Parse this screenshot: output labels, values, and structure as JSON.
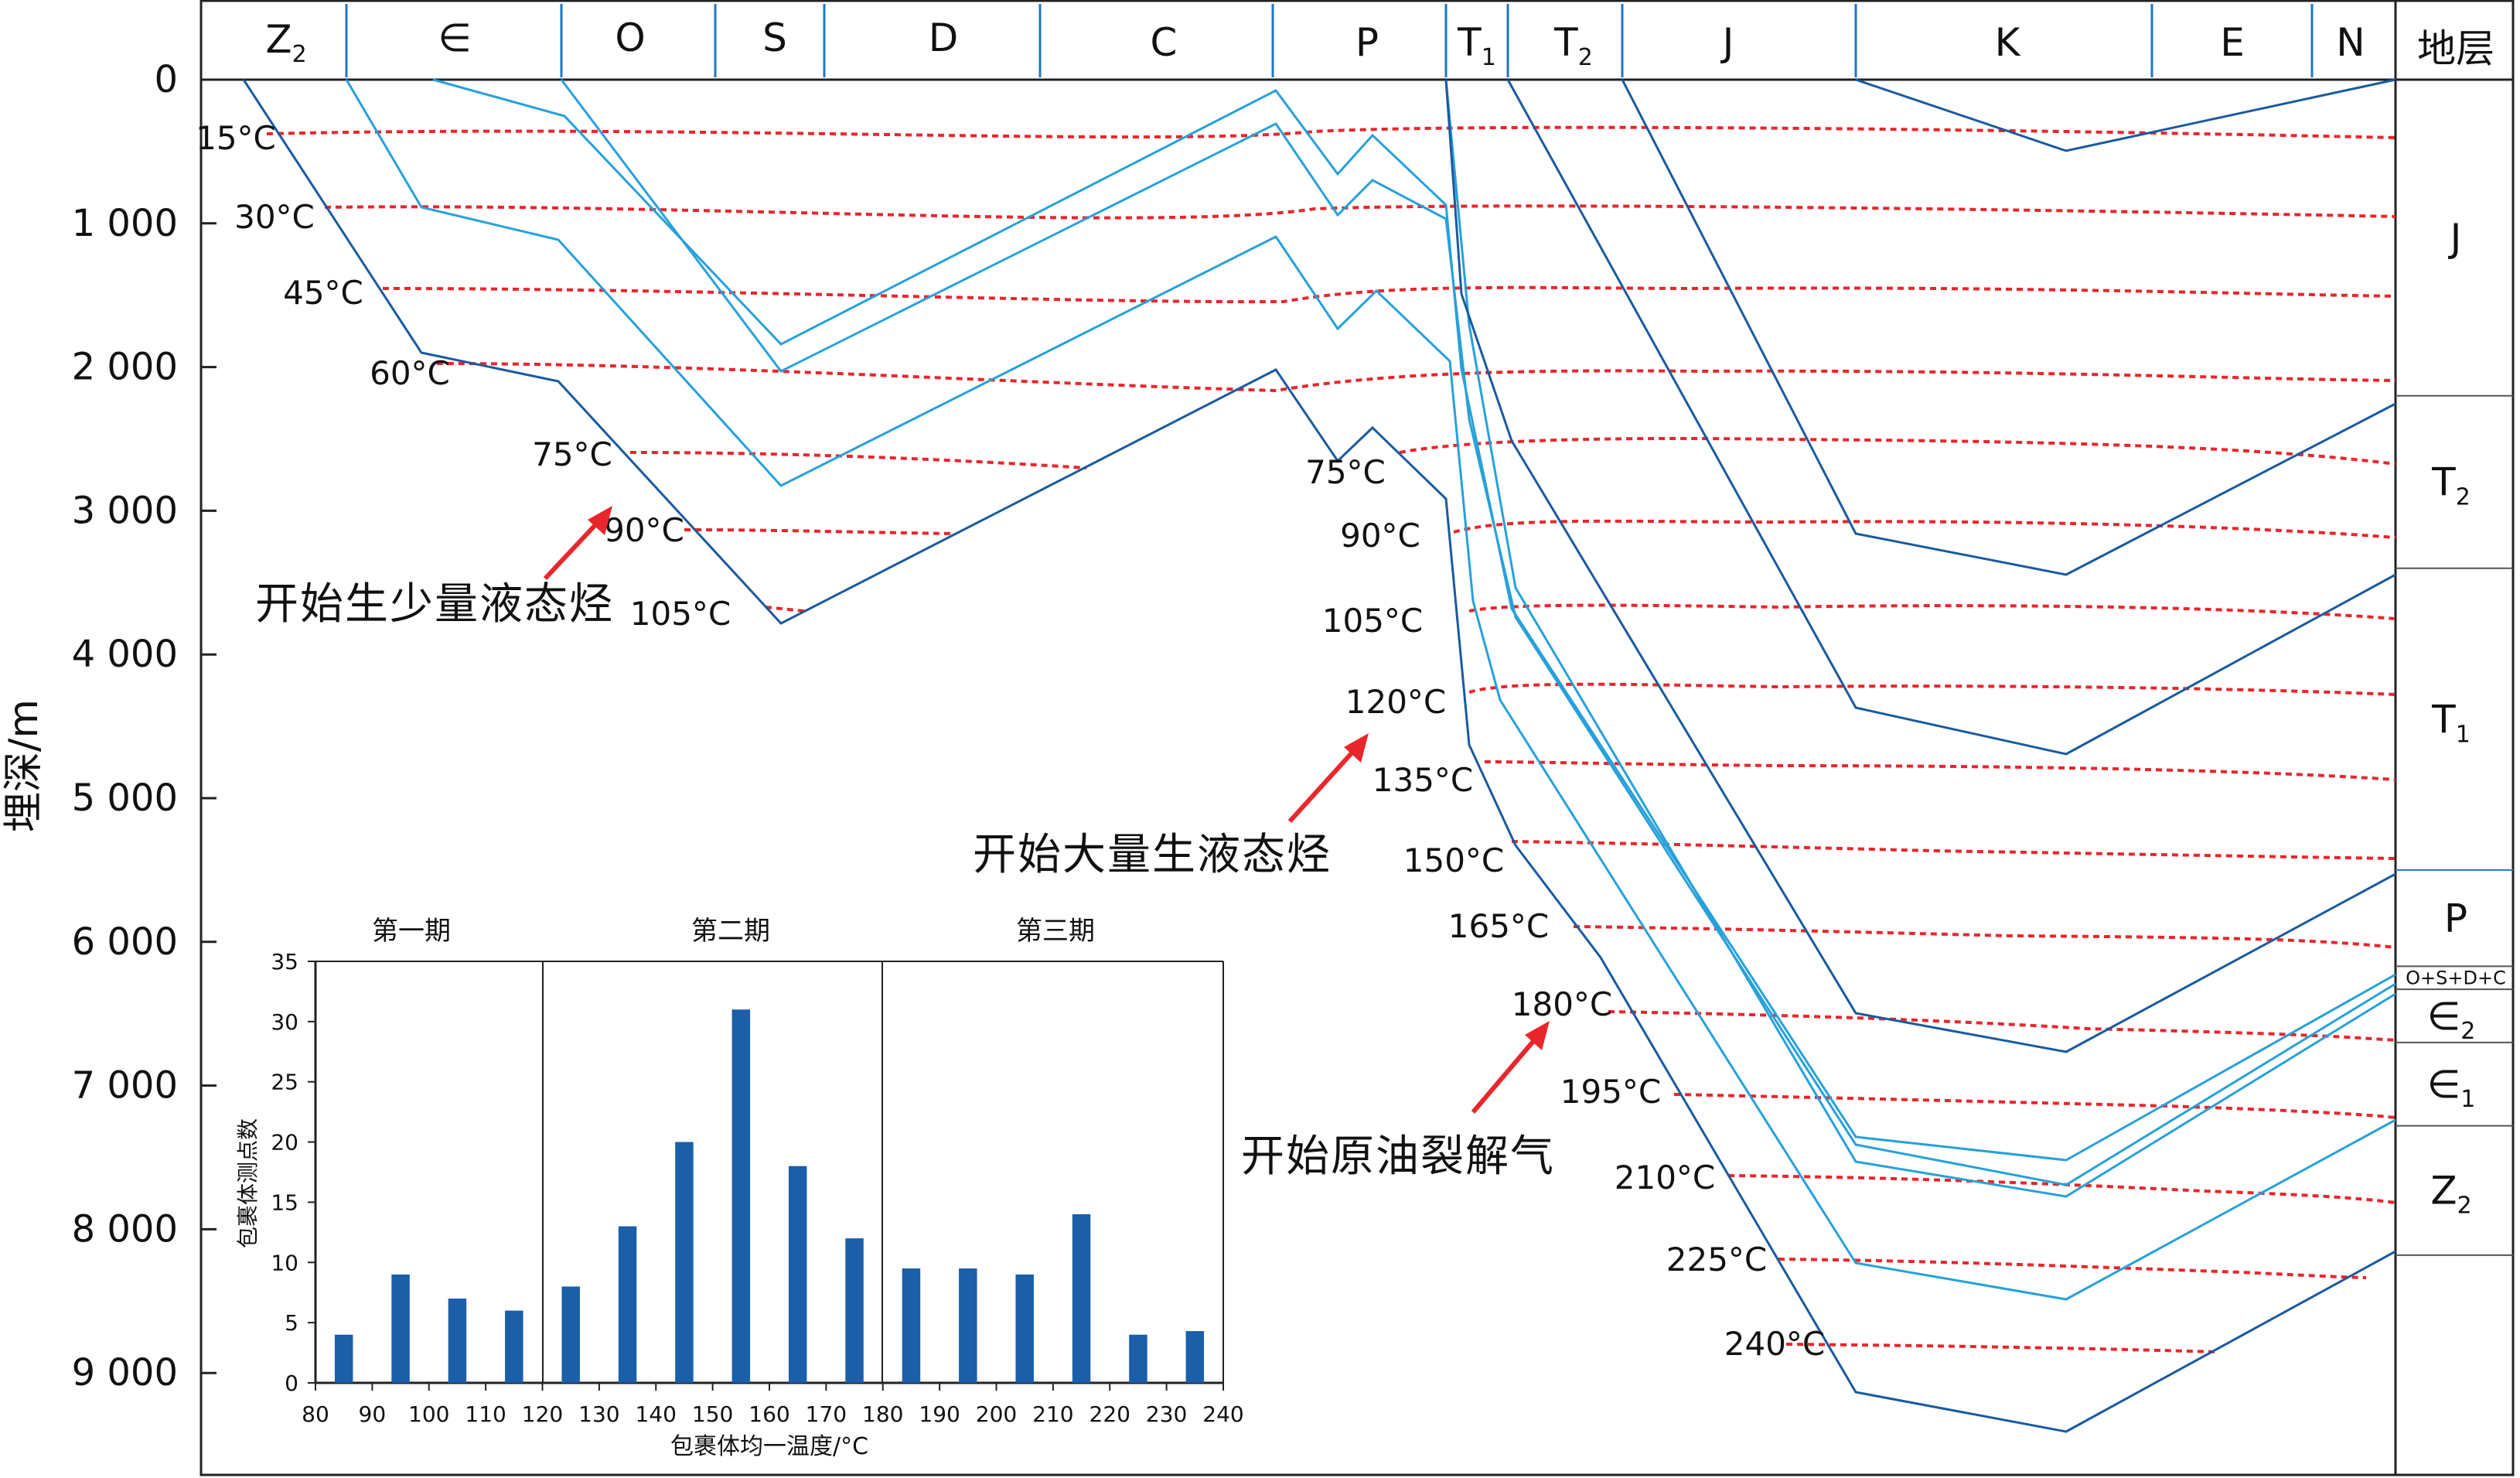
{
  "period_labels": [
    {
      "text": "Z2",
      "sub": "2"
    },
    {
      "text": "∈"
    },
    {
      "text": "O"
    },
    {
      "text": "S"
    },
    {
      "text": "D"
    },
    {
      "text": "C"
    },
    {
      "text": "P"
    },
    {
      "text": "T1",
      "sub": "1"
    },
    {
      "text": "T2",
      "sub": "2"
    },
    {
      "text": "J"
    },
    {
      "text": "K"
    },
    {
      "text": "E"
    },
    {
      "text": "N"
    }
  ],
  "strata_column_title": "地层",
  "annotations": [
    "开始生少量液态烃",
    "开始大量生液态烃",
    "开始原油裂解气"
  ],
  "chart_data": [
    {
      "type": "line",
      "title": "",
      "xlabel": "",
      "ylabel": "埋深/m",
      "ylim": [
        0,
        9000
      ],
      "y_ticks": [
        "0",
        "1 000",
        "2 000",
        "3 000",
        "4 000",
        "5 000",
        "6 000",
        "7 000",
        "8 000",
        "9 000"
      ],
      "isotherm_labels": [
        "15°C",
        "30°C",
        "45°C",
        "60°C",
        "75°C",
        "90°C",
        "105°C",
        "75°C",
        "90°C",
        "105°C",
        "120°C",
        "135°C",
        "150°C",
        "165°C",
        "180°C",
        "195°C",
        "210°C",
        "225°C",
        "240°C"
      ],
      "strata_column": [
        {
          "name": "J",
          "top": 0,
          "base": 2200
        },
        {
          "name": "T2",
          "top": 2200,
          "base": 3400
        },
        {
          "name": "T1",
          "top": 3400,
          "base": 5500
        },
        {
          "name": "P",
          "top": 5500,
          "base": 6170
        },
        {
          "name": "O+S+D+C",
          "top": 6170,
          "base": 6330
        },
        {
          "name": "∈2",
          "top": 6330,
          "base": 6700
        },
        {
          "name": "∈1",
          "top": 6700,
          "base": 7280
        },
        {
          "name": "Z2",
          "top": 7280,
          "base": 8180
        }
      ]
    },
    {
      "type": "bar",
      "title": "",
      "xlabel": "包裹体均一温度/°C",
      "ylabel": "包裹体测点数",
      "stages": [
        "第一期",
        "第二期",
        "第三期"
      ],
      "x_ticks": [
        "80",
        "90",
        "100",
        "110",
        "120",
        "130",
        "140",
        "150",
        "160",
        "170",
        "180",
        "190",
        "200",
        "210",
        "220",
        "230",
        "240"
      ],
      "y_ticks": [
        "0",
        "5",
        "10",
        "15",
        "20",
        "25",
        "30",
        "35"
      ],
      "xlim": [
        80,
        240
      ],
      "ylim": [
        0,
        35
      ],
      "bin_centers": [
        85,
        95,
        105,
        115,
        125,
        135,
        145,
        155,
        165,
        175,
        185,
        195,
        205,
        215,
        225,
        235
      ],
      "values": [
        4,
        9,
        7,
        6,
        8,
        13,
        20,
        31,
        18,
        12,
        9.5,
        9.5,
        9,
        14,
        4,
        4.3
      ]
    }
  ]
}
